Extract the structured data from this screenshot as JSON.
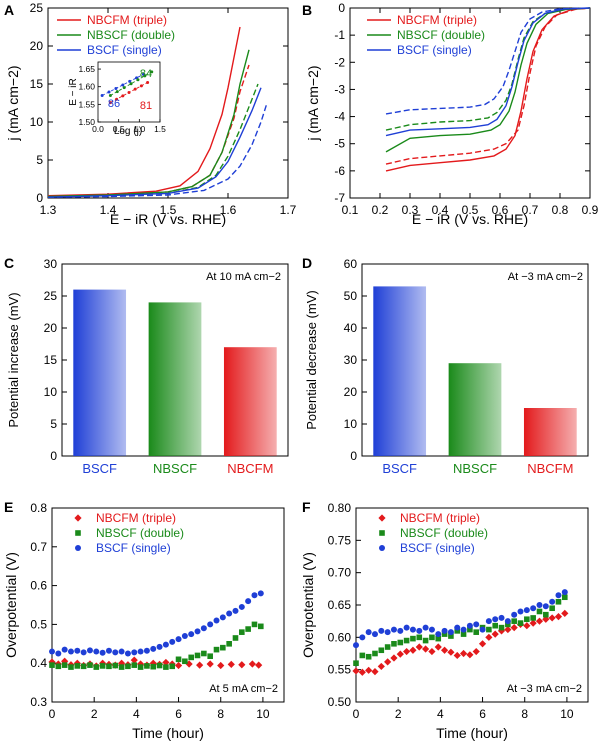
{
  "chart_data": [
    {
      "panel": "A",
      "type": "line",
      "xlabel": "E − iR (V vs. RHE)",
      "ylabel": "j (mA cm−2)",
      "xlim": [
        1.3,
        1.7
      ],
      "ylim": [
        0,
        25
      ],
      "xticks": [
        "1.3",
        "1.4",
        "1.5",
        "1.6",
        "1.7"
      ],
      "yticks": [
        "0",
        "5",
        "10",
        "15",
        "20",
        "25"
      ],
      "legend": [
        "NBCFM (triple)",
        "NBSCF (double)",
        "BSCF (single)"
      ],
      "series": [
        {
          "name": "NBCFM solid",
          "color": "#e31a1c",
          "dash": false,
          "x": [
            1.3,
            1.4,
            1.48,
            1.52,
            1.55,
            1.57,
            1.59,
            1.6,
            1.61,
            1.62
          ],
          "y": [
            0.3,
            0.5,
            0.9,
            1.6,
            3.5,
            6.5,
            11,
            14.5,
            18.5,
            22.5
          ]
        },
        {
          "name": "NBCFM dashed",
          "color": "#e31a1c",
          "dash": true,
          "x": [
            1.3,
            1.4,
            1.5,
            1.54,
            1.57,
            1.59,
            1.61,
            1.62,
            1.635
          ],
          "y": [
            0.2,
            0.4,
            0.8,
            1.5,
            3,
            6,
            10.5,
            14,
            17.5
          ]
        },
        {
          "name": "NBSCF solid",
          "color": "#1a8a1a",
          "dash": false,
          "x": [
            1.3,
            1.4,
            1.5,
            1.54,
            1.57,
            1.59,
            1.61,
            1.62,
            1.635
          ],
          "y": [
            0.2,
            0.4,
            0.8,
            1.5,
            3,
            6,
            11,
            15,
            19.5
          ]
        },
        {
          "name": "NBSCF dashed",
          "color": "#1a8a1a",
          "dash": true,
          "x": [
            1.3,
            1.4,
            1.5,
            1.55,
            1.58,
            1.6,
            1.62,
            1.64,
            1.65
          ],
          "y": [
            0.1,
            0.3,
            0.6,
            1.4,
            3,
            5.5,
            9,
            13,
            15
          ]
        },
        {
          "name": "BSCF solid",
          "color": "#1f3fd6",
          "dash": false,
          "x": [
            1.3,
            1.4,
            1.5,
            1.55,
            1.58,
            1.6,
            1.62,
            1.64,
            1.655
          ],
          "y": [
            0.1,
            0.3,
            0.6,
            1.3,
            2.8,
            4.8,
            8,
            11.5,
            14.5
          ]
        },
        {
          "name": "BSCF dashed",
          "color": "#1f3fd6",
          "dash": true,
          "x": [
            1.3,
            1.4,
            1.5,
            1.56,
            1.6,
            1.62,
            1.64,
            1.655,
            1.665
          ],
          "y": [
            0.1,
            0.2,
            0.4,
            1.0,
            2.5,
            4.2,
            7,
            10,
            12.5
          ]
        }
      ],
      "inset": {
        "xlabel": "Log (j)",
        "ylabel": "E − iR",
        "xlim": [
          0,
          1.5
        ],
        "ylim": [
          1.5,
          1.67
        ],
        "xticks": [
          "0.0",
          "0.5",
          "1.0",
          "1.5"
        ],
        "yticks": [
          "1.50",
          "1.55",
          "1.60",
          "1.65"
        ],
        "labels": [
          {
            "text": "86",
            "color": "#1f3fd6"
          },
          {
            "text": "84",
            "color": "#1a8a1a"
          },
          {
            "text": "81",
            "color": "#e31a1c"
          }
        ],
        "series": [
          {
            "name": "BSCF",
            "color": "#1f3fd6",
            "x": [
              0.1,
              1.1
            ],
            "y": [
              1.575,
              1.635
            ]
          },
          {
            "name": "NBSCF",
            "color": "#1a8a1a",
            "x": [
              0.3,
              1.3
            ],
            "y": [
              1.575,
              1.642
            ]
          },
          {
            "name": "NBCFM",
            "color": "#e31a1c",
            "x": [
              0.3,
              1.2
            ],
            "y": [
              1.555,
              1.612
            ]
          }
        ]
      }
    },
    {
      "panel": "B",
      "type": "line",
      "xlabel": "E − iR (V vs. RHE)",
      "ylabel": "j (mA cm−2)",
      "xlim": [
        0.1,
        0.9
      ],
      "ylim": [
        -7,
        0
      ],
      "xticks": [
        "0.1",
        "0.2",
        "0.3",
        "0.4",
        "0.5",
        "0.6",
        "0.7",
        "0.8",
        "0.9"
      ],
      "yticks": [
        "0",
        "-1",
        "-2",
        "-3",
        "-4",
        "-5",
        "-6",
        "-7"
      ],
      "legend": [
        "NBCFM (triple)",
        "NBSCF (double)",
        "BSCF (single)"
      ],
      "series": [
        {
          "name": "NBCFM solid",
          "color": "#e31a1c",
          "dash": false,
          "x": [
            0.22,
            0.3,
            0.4,
            0.5,
            0.58,
            0.62,
            0.65,
            0.67,
            0.69,
            0.71,
            0.74,
            0.78,
            0.84,
            0.9
          ],
          "y": [
            -6.0,
            -5.8,
            -5.7,
            -5.6,
            -5.45,
            -5.2,
            -4.7,
            -3.8,
            -2.6,
            -1.6,
            -0.8,
            -0.3,
            -0.05,
            0.0
          ]
        },
        {
          "name": "NBCFM dashed",
          "color": "#e31a1c",
          "dash": true,
          "x": [
            0.22,
            0.3,
            0.4,
            0.5,
            0.58,
            0.62,
            0.66,
            0.68,
            0.7,
            0.72,
            0.75,
            0.79,
            0.85,
            0.9
          ],
          "y": [
            -5.75,
            -5.55,
            -5.45,
            -5.35,
            -5.2,
            -5.0,
            -4.5,
            -3.6,
            -2.4,
            -1.4,
            -0.7,
            -0.25,
            -0.05,
            0.0
          ]
        },
        {
          "name": "NBSCF solid",
          "color": "#1a8a1a",
          "dash": false,
          "x": [
            0.22,
            0.3,
            0.4,
            0.5,
            0.57,
            0.6,
            0.63,
            0.65,
            0.67,
            0.69,
            0.72,
            0.76,
            0.82,
            0.9
          ],
          "y": [
            -5.3,
            -4.8,
            -4.7,
            -4.65,
            -4.5,
            -4.3,
            -3.8,
            -3.1,
            -2.1,
            -1.3,
            -0.6,
            -0.2,
            -0.05,
            0.0
          ]
        },
        {
          "name": "NBSCF dashed",
          "color": "#1a8a1a",
          "dash": true,
          "x": [
            0.22,
            0.3,
            0.4,
            0.5,
            0.56,
            0.59,
            0.62,
            0.64,
            0.66,
            0.68,
            0.71,
            0.75,
            0.81,
            0.9
          ],
          "y": [
            -4.5,
            -4.3,
            -4.2,
            -4.15,
            -4.05,
            -3.85,
            -3.4,
            -2.8,
            -1.9,
            -1.1,
            -0.5,
            -0.2,
            -0.04,
            0.0
          ]
        },
        {
          "name": "BSCF solid",
          "color": "#1f3fd6",
          "dash": false,
          "x": [
            0.22,
            0.3,
            0.4,
            0.5,
            0.56,
            0.59,
            0.62,
            0.64,
            0.66,
            0.68,
            0.71,
            0.75,
            0.81,
            0.9
          ],
          "y": [
            -4.7,
            -4.5,
            -4.45,
            -4.4,
            -4.3,
            -4.1,
            -3.6,
            -2.9,
            -2.0,
            -1.2,
            -0.55,
            -0.2,
            -0.04,
            0.0
          ]
        },
        {
          "name": "BSCF dashed",
          "color": "#1f3fd6",
          "dash": true,
          "x": [
            0.22,
            0.3,
            0.4,
            0.5,
            0.55,
            0.58,
            0.61,
            0.63,
            0.65,
            0.67,
            0.7,
            0.74,
            0.8,
            0.9
          ],
          "y": [
            -3.9,
            -3.75,
            -3.7,
            -3.65,
            -3.55,
            -3.35,
            -2.9,
            -2.3,
            -1.6,
            -0.9,
            -0.4,
            -0.15,
            -0.03,
            0.0
          ]
        }
      ]
    },
    {
      "panel": "C",
      "type": "bar",
      "ylabel": "Potential increase (mV)",
      "annotation": "At 10 mA cm−2",
      "ylim": [
        0,
        30
      ],
      "yticks": [
        "0",
        "5",
        "10",
        "15",
        "20",
        "25",
        "30"
      ],
      "categories": [
        "BSCF",
        "NBSCF",
        "NBCFM"
      ],
      "values": [
        26,
        24,
        17
      ],
      "colors": [
        "#1f3fd6",
        "#1a8a1a",
        "#e31a1c"
      ]
    },
    {
      "panel": "D",
      "type": "bar",
      "ylabel": "Potential decrease (mV)",
      "annotation": "At −3 mA cm−2",
      "ylim": [
        0,
        60
      ],
      "yticks": [
        "0",
        "10",
        "20",
        "30",
        "40",
        "50",
        "60"
      ],
      "categories": [
        "BSCF",
        "NBSCF",
        "NBCFM"
      ],
      "values": [
        53,
        29,
        15
      ],
      "colors": [
        "#1f3fd6",
        "#1a8a1a",
        "#e31a1c"
      ]
    },
    {
      "panel": "E",
      "type": "scatter",
      "xlabel": "Time (hour)",
      "ylabel": "Overpotential (V)",
      "annotation": "At 5 mA cm−2",
      "xlim": [
        0,
        11
      ],
      "ylim": [
        0.3,
        0.8
      ],
      "xticks": [
        "0",
        "2",
        "4",
        "6",
        "8",
        "10"
      ],
      "yticks": [
        "0.3",
        "0.4",
        "0.5",
        "0.6",
        "0.7",
        "0.8"
      ],
      "legend": [
        "NBCFM (triple)",
        "NBSCF (double)",
        "BSCF (single)"
      ],
      "series": [
        {
          "name": "NBCFM (triple)",
          "marker": "diamond",
          "color": "#e31a1c",
          "x": [
            0,
            0.3,
            0.6,
            0.9,
            1.2,
            1.5,
            1.8,
            2.1,
            2.4,
            2.7,
            3.0,
            3.3,
            3.6,
            3.9,
            4.2,
            4.5,
            4.8,
            5.1,
            5.4,
            5.7,
            6.0,
            6.5,
            7.0,
            7.5,
            8.0,
            8.5,
            9.0,
            9.5,
            9.8
          ],
          "y": [
            0.403,
            0.398,
            0.405,
            0.396,
            0.4,
            0.394,
            0.398,
            0.393,
            0.4,
            0.397,
            0.395,
            0.4,
            0.396,
            0.408,
            0.398,
            0.395,
            0.4,
            0.397,
            0.402,
            0.398,
            0.394,
            0.398,
            0.395,
            0.398,
            0.394,
            0.397,
            0.396,
            0.398,
            0.395
          ]
        },
        {
          "name": "NBSCF (double)",
          "marker": "square",
          "color": "#1a8a1a",
          "x": [
            0,
            0.3,
            0.6,
            0.9,
            1.2,
            1.5,
            1.8,
            2.1,
            2.4,
            2.7,
            3.0,
            3.3,
            3.6,
            3.9,
            4.2,
            4.5,
            4.8,
            5.1,
            5.4,
            5.7,
            6.0,
            6.3,
            6.6,
            6.9,
            7.2,
            7.5,
            7.8,
            8.1,
            8.4,
            8.7,
            9.0,
            9.3,
            9.6,
            9.9
          ],
          "y": [
            0.395,
            0.392,
            0.395,
            0.39,
            0.393,
            0.392,
            0.395,
            0.39,
            0.393,
            0.392,
            0.394,
            0.39,
            0.392,
            0.395,
            0.39,
            0.393,
            0.391,
            0.394,
            0.39,
            0.392,
            0.41,
            0.405,
            0.415,
            0.42,
            0.425,
            0.418,
            0.435,
            0.44,
            0.45,
            0.465,
            0.48,
            0.488,
            0.5,
            0.495
          ]
        },
        {
          "name": "BSCF (single)",
          "marker": "circle",
          "color": "#1f3fd6",
          "x": [
            0,
            0.3,
            0.6,
            0.9,
            1.2,
            1.5,
            1.8,
            2.1,
            2.4,
            2.7,
            3.0,
            3.3,
            3.6,
            3.9,
            4.2,
            4.5,
            4.8,
            5.1,
            5.4,
            5.7,
            6.0,
            6.3,
            6.6,
            6.9,
            7.2,
            7.5,
            7.8,
            8.1,
            8.4,
            8.7,
            9.0,
            9.3,
            9.6,
            9.9
          ],
          "y": [
            0.43,
            0.425,
            0.435,
            0.43,
            0.432,
            0.428,
            0.433,
            0.43,
            0.427,
            0.432,
            0.428,
            0.43,
            0.425,
            0.428,
            0.43,
            0.432,
            0.437,
            0.442,
            0.448,
            0.455,
            0.462,
            0.47,
            0.475,
            0.482,
            0.49,
            0.5,
            0.51,
            0.518,
            0.528,
            0.535,
            0.545,
            0.56,
            0.575,
            0.58
          ]
        }
      ]
    },
    {
      "panel": "F",
      "type": "scatter",
      "xlabel": "Time (hour)",
      "ylabel": "Overpotential (V)",
      "annotation": "At −3 mA cm−2",
      "xlim": [
        0,
        11
      ],
      "ylim": [
        0.5,
        0.8
      ],
      "xticks": [
        "0",
        "2",
        "4",
        "6",
        "8",
        "10"
      ],
      "yticks": [
        "0.50",
        "0.55",
        "0.60",
        "0.65",
        "0.70",
        "0.75",
        "0.80"
      ],
      "legend": [
        "NBCFM (triple)",
        "NBSCF (double)",
        "BSCF (single)"
      ],
      "series": [
        {
          "name": "NBCFM (triple)",
          "marker": "diamond",
          "color": "#e31a1c",
          "x": [
            0,
            0.3,
            0.6,
            0.9,
            1.2,
            1.5,
            1.8,
            2.1,
            2.4,
            2.7,
            3.0,
            3.3,
            3.6,
            3.9,
            4.2,
            4.5,
            4.8,
            5.1,
            5.4,
            5.7,
            6.0,
            6.3,
            6.6,
            6.9,
            7.2,
            7.5,
            7.8,
            8.1,
            8.4,
            8.7,
            9.0,
            9.3,
            9.6,
            9.9
          ],
          "y": [
            0.548,
            0.546,
            0.549,
            0.547,
            0.555,
            0.562,
            0.568,
            0.574,
            0.578,
            0.58,
            0.585,
            0.582,
            0.578,
            0.585,
            0.58,
            0.577,
            0.572,
            0.575,
            0.573,
            0.578,
            0.59,
            0.6,
            0.605,
            0.61,
            0.612,
            0.615,
            0.62,
            0.618,
            0.622,
            0.625,
            0.628,
            0.63,
            0.632,
            0.637
          ]
        },
        {
          "name": "NBSCF (double)",
          "marker": "square",
          "color": "#1a8a1a",
          "x": [
            0,
            0.3,
            0.6,
            0.9,
            1.2,
            1.5,
            1.8,
            2.1,
            2.4,
            2.7,
            3.0,
            3.3,
            3.6,
            3.9,
            4.2,
            4.5,
            4.8,
            5.1,
            5.4,
            5.7,
            6.0,
            6.3,
            6.6,
            6.9,
            7.2,
            7.5,
            7.8,
            8.1,
            8.4,
            8.7,
            9.0,
            9.3,
            9.6,
            9.9
          ],
          "y": [
            0.56,
            0.572,
            0.57,
            0.575,
            0.58,
            0.585,
            0.59,
            0.592,
            0.595,
            0.598,
            0.6,
            0.595,
            0.6,
            0.598,
            0.605,
            0.602,
            0.61,
            0.605,
            0.612,
            0.608,
            0.615,
            0.612,
            0.618,
            0.615,
            0.62,
            0.625,
            0.622,
            0.628,
            0.63,
            0.64,
            0.635,
            0.645,
            0.655,
            0.662
          ]
        },
        {
          "name": "BSCF (single)",
          "marker": "circle",
          "color": "#1f3fd6",
          "x": [
            0,
            0.3,
            0.6,
            0.9,
            1.2,
            1.5,
            1.8,
            2.1,
            2.4,
            2.7,
            3.0,
            3.3,
            3.6,
            3.9,
            4.2,
            4.5,
            4.8,
            5.1,
            5.4,
            5.7,
            6.0,
            6.3,
            6.6,
            6.9,
            7.2,
            7.5,
            7.8,
            8.1,
            8.4,
            8.7,
            9.0,
            9.3,
            9.6,
            9.9
          ],
          "y": [
            0.588,
            0.6,
            0.608,
            0.605,
            0.61,
            0.608,
            0.612,
            0.61,
            0.615,
            0.612,
            0.61,
            0.615,
            0.612,
            0.605,
            0.61,
            0.608,
            0.615,
            0.612,
            0.618,
            0.62,
            0.612,
            0.625,
            0.628,
            0.63,
            0.625,
            0.635,
            0.64,
            0.642,
            0.645,
            0.65,
            0.648,
            0.655,
            0.665,
            0.67
          ]
        }
      ]
    }
  ]
}
